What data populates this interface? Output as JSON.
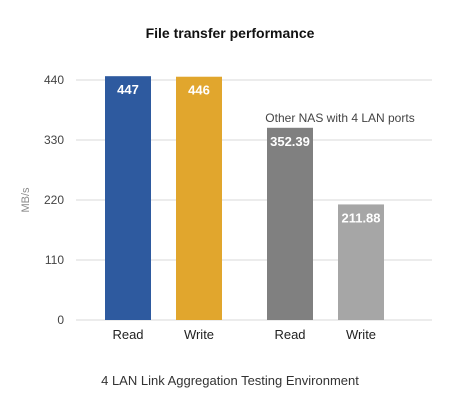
{
  "chart_data": {
    "type": "bar",
    "title": "File transfer performance",
    "ylabel": "MB/s",
    "xlabel": "",
    "ylim": [
      0,
      440
    ],
    "yticks": [
      0,
      110,
      220,
      330,
      440
    ],
    "grid": true,
    "categories": [
      "Read",
      "Write",
      "Read",
      "Write"
    ],
    "values": [
      447,
      446,
      352.39,
      211.88
    ],
    "value_labels": [
      "447",
      "446",
      "352.39",
      "211.88"
    ],
    "colors": [
      "#2e5a9f",
      "#e1a62d",
      "#808080",
      "#a6a6a6"
    ],
    "annotation": "Other NAS with 4 LAN ports",
    "caption": "4 LAN Link Aggregation Testing Environment"
  }
}
